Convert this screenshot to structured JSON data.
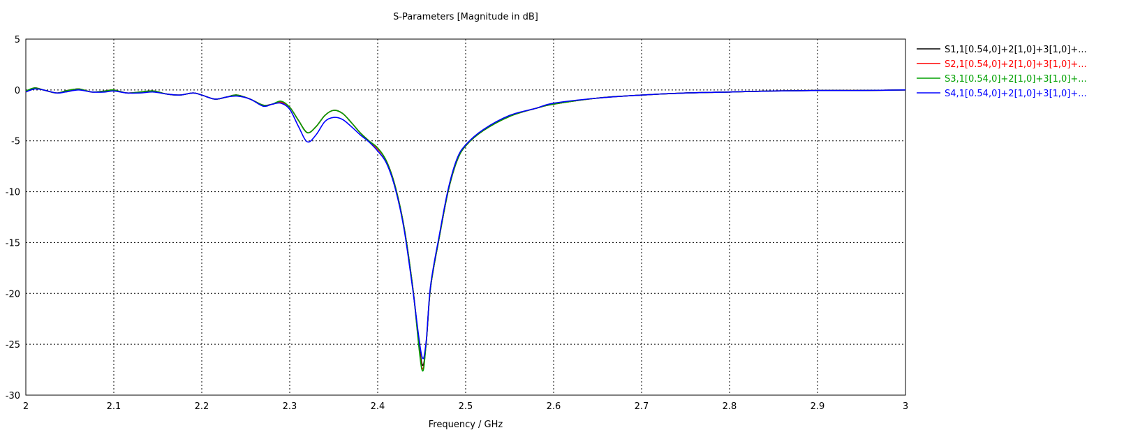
{
  "chart_data": {
    "type": "line",
    "title": "S-Parameters [Magnitude in dB]",
    "xlabel": "Frequency / GHz",
    "ylabel": "",
    "xlim": [
      2,
      3
    ],
    "ylim": [
      -30,
      5
    ],
    "xticks": [
      "2",
      "2.1",
      "2.2",
      "2.3",
      "2.4",
      "2.5",
      "2.6",
      "2.7",
      "2.8",
      "2.9",
      "3"
    ],
    "yticks": [
      "5",
      "0",
      "-5",
      "-10",
      "-15",
      "-20",
      "-25",
      "-30"
    ],
    "grid": true,
    "grid_style": "dotted",
    "legend_position": "right",
    "series": [
      {
        "name": "S1,1[0.54,0]+2[1,0]+3[1,0]+...",
        "color": "#000000",
        "x": [
          2.0,
          2.01,
          2.02,
          2.035,
          2.045,
          2.06,
          2.075,
          2.09,
          2.1,
          2.115,
          2.13,
          2.145,
          2.16,
          2.175,
          2.19,
          2.2,
          2.215,
          2.228,
          2.24,
          2.255,
          2.27,
          2.28,
          2.29,
          2.3,
          2.31,
          2.32,
          2.33,
          2.34,
          2.35,
          2.36,
          2.37,
          2.38,
          2.39,
          2.4,
          2.41,
          2.42,
          2.43,
          2.44,
          2.45,
          2.455,
          2.46,
          2.47,
          2.48,
          2.49,
          2.5,
          2.52,
          2.55,
          2.58,
          2.6,
          2.65,
          2.7,
          2.75,
          2.8,
          2.85,
          2.9,
          2.95,
          3.0
        ],
        "y": [
          -0.2,
          0.2,
          0.0,
          -0.3,
          -0.1,
          0.1,
          -0.2,
          -0.1,
          0.0,
          -0.3,
          -0.2,
          -0.1,
          -0.4,
          -0.5,
          -0.3,
          -0.5,
          -0.9,
          -0.7,
          -0.5,
          -0.9,
          -1.5,
          -1.4,
          -1.2,
          -1.7,
          -3.0,
          -4.2,
          -3.6,
          -2.5,
          -2.0,
          -2.3,
          -3.2,
          -4.2,
          -5.0,
          -5.8,
          -7.0,
          -9.5,
          -13.5,
          -19.5,
          -26.8,
          -25.0,
          -19.5,
          -14.5,
          -10.0,
          -7.0,
          -5.5,
          -4.0,
          -2.6,
          -1.8,
          -1.4,
          -0.8,
          -0.5,
          -0.3,
          -0.2,
          -0.1,
          -0.05,
          -0.05,
          0.0
        ]
      },
      {
        "name": "S2,1[0.54,0]+2[1,0]+3[1,0]+...",
        "color": "#ff0000",
        "x": [
          2.0,
          2.01,
          2.02,
          2.035,
          2.045,
          2.06,
          2.075,
          2.09,
          2.1,
          2.115,
          2.13,
          2.145,
          2.16,
          2.175,
          2.19,
          2.2,
          2.215,
          2.228,
          2.24,
          2.255,
          2.27,
          2.28,
          2.29,
          2.3,
          2.31,
          2.32,
          2.33,
          2.34,
          2.35,
          2.36,
          2.37,
          2.38,
          2.39,
          2.4,
          2.41,
          2.42,
          2.43,
          2.44,
          2.45,
          2.455,
          2.46,
          2.47,
          2.48,
          2.49,
          2.5,
          2.52,
          2.55,
          2.58,
          2.6,
          2.65,
          2.7,
          2.75,
          2.8,
          2.85,
          2.9,
          2.95,
          3.0
        ],
        "y": [
          -0.2,
          0.2,
          0.0,
          -0.3,
          -0.1,
          0.1,
          -0.2,
          -0.1,
          0.0,
          -0.3,
          -0.2,
          -0.1,
          -0.4,
          -0.5,
          -0.3,
          -0.5,
          -0.9,
          -0.7,
          -0.5,
          -0.9,
          -1.5,
          -1.4,
          -1.2,
          -1.7,
          -3.0,
          -4.2,
          -3.6,
          -2.5,
          -2.0,
          -2.3,
          -3.2,
          -4.2,
          -5.0,
          -5.8,
          -7.0,
          -9.5,
          -13.5,
          -19.5,
          -27.2,
          -25.0,
          -19.5,
          -14.5,
          -10.0,
          -7.0,
          -5.5,
          -4.0,
          -2.6,
          -1.8,
          -1.4,
          -0.8,
          -0.5,
          -0.3,
          -0.2,
          -0.1,
          -0.05,
          -0.05,
          0.0
        ]
      },
      {
        "name": "S3,1[0.54,0]+2[1,0]+3[1,0]+...",
        "color": "#00a000",
        "x": [
          2.0,
          2.01,
          2.02,
          2.035,
          2.045,
          2.06,
          2.075,
          2.09,
          2.1,
          2.115,
          2.13,
          2.145,
          2.16,
          2.175,
          2.19,
          2.2,
          2.215,
          2.228,
          2.24,
          2.255,
          2.27,
          2.28,
          2.29,
          2.3,
          2.31,
          2.32,
          2.33,
          2.34,
          2.35,
          2.36,
          2.37,
          2.38,
          2.39,
          2.4,
          2.41,
          2.42,
          2.43,
          2.44,
          2.45,
          2.455,
          2.46,
          2.47,
          2.48,
          2.49,
          2.5,
          2.52,
          2.55,
          2.58,
          2.6,
          2.65,
          2.7,
          2.75,
          2.8,
          2.85,
          2.9,
          2.95,
          3.0
        ],
        "y": [
          -0.1,
          0.2,
          0.0,
          -0.3,
          -0.1,
          0.1,
          -0.2,
          -0.1,
          0.0,
          -0.3,
          -0.2,
          -0.1,
          -0.4,
          -0.5,
          -0.3,
          -0.5,
          -0.9,
          -0.7,
          -0.5,
          -0.9,
          -1.5,
          -1.4,
          -1.1,
          -1.7,
          -3.0,
          -4.2,
          -3.6,
          -2.5,
          -2.0,
          -2.3,
          -3.2,
          -4.2,
          -5.0,
          -5.7,
          -7.0,
          -9.5,
          -13.5,
          -19.5,
          -27.4,
          -25.0,
          -19.5,
          -14.5,
          -10.0,
          -7.0,
          -5.5,
          -4.0,
          -2.6,
          -1.8,
          -1.4,
          -0.8,
          -0.5,
          -0.3,
          -0.2,
          -0.1,
          -0.05,
          -0.05,
          0.0
        ]
      },
      {
        "name": "S4,1[0.54,0]+2[1,0]+3[1,0]+...",
        "color": "#0000ff",
        "x": [
          2.0,
          2.01,
          2.02,
          2.035,
          2.045,
          2.06,
          2.075,
          2.09,
          2.1,
          2.115,
          2.13,
          2.145,
          2.16,
          2.175,
          2.19,
          2.2,
          2.215,
          2.228,
          2.24,
          2.255,
          2.27,
          2.28,
          2.29,
          2.3,
          2.31,
          2.32,
          2.33,
          2.34,
          2.35,
          2.36,
          2.37,
          2.38,
          2.39,
          2.4,
          2.41,
          2.42,
          2.43,
          2.44,
          2.45,
          2.455,
          2.46,
          2.47,
          2.48,
          2.49,
          2.5,
          2.52,
          2.55,
          2.58,
          2.6,
          2.65,
          2.7,
          2.75,
          2.8,
          2.85,
          2.9,
          2.95,
          3.0
        ],
        "y": [
          -0.2,
          0.1,
          0.0,
          -0.3,
          -0.2,
          0.0,
          -0.2,
          -0.2,
          -0.1,
          -0.3,
          -0.3,
          -0.2,
          -0.4,
          -0.5,
          -0.3,
          -0.5,
          -0.9,
          -0.7,
          -0.6,
          -0.9,
          -1.6,
          -1.4,
          -1.3,
          -1.9,
          -3.6,
          -5.1,
          -4.4,
          -3.1,
          -2.7,
          -2.9,
          -3.6,
          -4.4,
          -5.1,
          -6.0,
          -7.2,
          -9.7,
          -13.7,
          -19.7,
          -26.1,
          -24.8,
          -19.3,
          -14.3,
          -9.8,
          -6.8,
          -5.4,
          -3.9,
          -2.5,
          -1.8,
          -1.3,
          -0.8,
          -0.5,
          -0.3,
          -0.2,
          -0.1,
          -0.05,
          -0.05,
          0.0
        ]
      }
    ]
  }
}
